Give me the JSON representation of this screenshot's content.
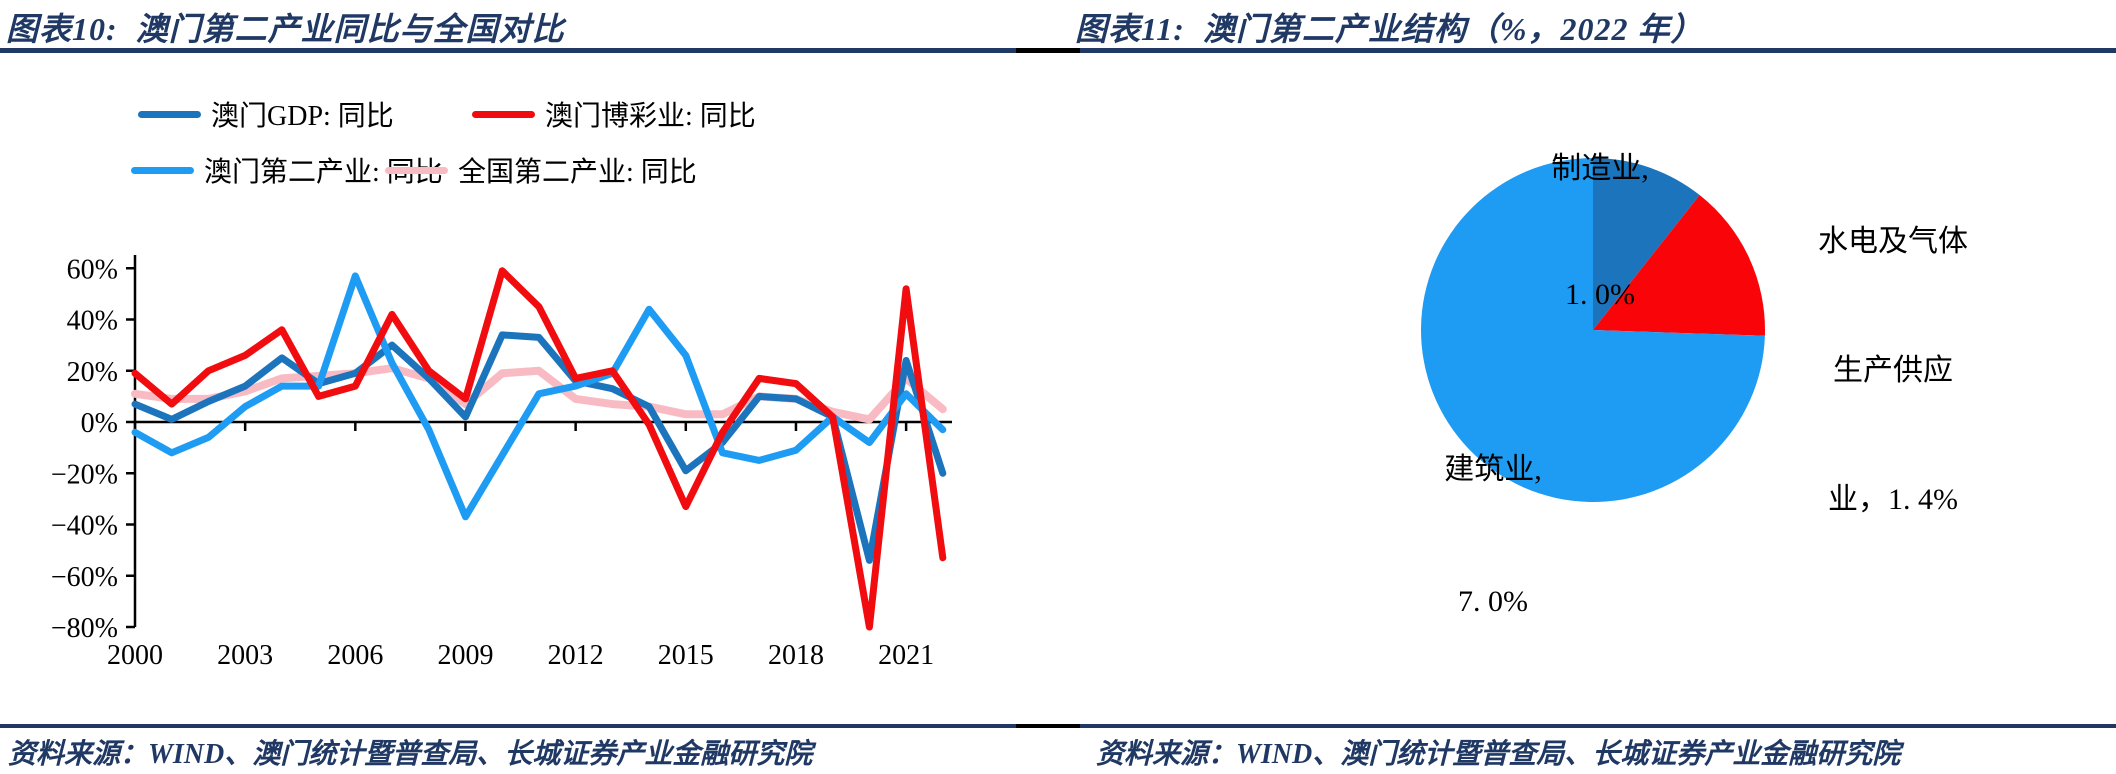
{
  "left_panel": {
    "title": "图表10:  澳门第二产业同比与全国对比",
    "source": "资料来源：WIND、澳门统计暨普查局、长城证券产业金融研究院"
  },
  "right_panel": {
    "title": "图表11:  澳门第二产业结构（%，2022 年）",
    "source": "资料来源：WIND、澳门统计暨普查局、长城证券产业金融研究院",
    "pie_labels": {
      "manufacturing": {
        "line1": "制造业,",
        "line2": "1. 0%"
      },
      "utilities": {
        "line1": "水电及气体",
        "line2": "生产供应",
        "line3": "业，1. 4%"
      },
      "construction": {
        "line1": "建筑业,",
        "line2": "7. 0%"
      }
    }
  },
  "colors": {
    "navy_accent": "#1F3864",
    "macau_gdp_blue": "#1C74BC",
    "gaming_red": "#F10C10",
    "macau_secondary_lightblue": "#1E9BF3",
    "national_secondary_pink": "#F9BBC3",
    "pie_red": "#F90509",
    "axis_black": "#000000"
  },
  "chart_data": [
    {
      "type": "line",
      "title": "澳门第二产业同比与全国对比",
      "x": [
        2000,
        2001,
        2002,
        2003,
        2004,
        2005,
        2006,
        2007,
        2008,
        2009,
        2010,
        2011,
        2012,
        2013,
        2014,
        2015,
        2016,
        2017,
        2018,
        2019,
        2020,
        2021,
        2022
      ],
      "series": [
        {
          "name": "澳门GDP: 同比",
          "color": "#1C74BC",
          "values": [
            7,
            1,
            8,
            14,
            25,
            15,
            19,
            30,
            17,
            2,
            34,
            33,
            16,
            13,
            6,
            -19,
            -8,
            10,
            9,
            2,
            -54,
            24,
            -20
          ]
        },
        {
          "name": "澳门博彩业: 同比",
          "color": "#F10C10",
          "values": [
            19,
            7,
            20,
            26,
            36,
            10,
            14,
            42,
            20,
            9,
            59,
            45,
            17,
            20,
            -1,
            -33,
            -4,
            17,
            15,
            2,
            -80,
            52,
            -53
          ]
        },
        {
          "name": "澳门第二产业: 同比",
          "color": "#1E9BF3",
          "values": [
            -4,
            -12,
            -6,
            6,
            14,
            14,
            57,
            23,
            -3,
            -37,
            -13,
            11,
            14,
            19,
            44,
            26,
            -12,
            -15,
            -11,
            2,
            -8,
            11,
            -3
          ]
        },
        {
          "name": "全国第二产业: 同比",
          "color": "#F9BBC3",
          "values": [
            11,
            9,
            9,
            12,
            17,
            18,
            19,
            21,
            17,
            7,
            19,
            20,
            9,
            7,
            6,
            3,
            3,
            10,
            9,
            4,
            1,
            17,
            5
          ]
        }
      ],
      "ylim": [
        -80,
        65
      ],
      "ytick_values": [
        60,
        40,
        20,
        0,
        -20,
        -40,
        -60,
        -80
      ],
      "ytick_labels": [
        "60%",
        "40%",
        "20%",
        "0%",
        "−20%",
        "−40%",
        "−60%",
        "−80%"
      ],
      "xtick_years": [
        2000,
        2003,
        2006,
        2009,
        2012,
        2015,
        2018,
        2021
      ],
      "xtick_labels": [
        "2000",
        "2003",
        "2006",
        "2009",
        "2012",
        "2015",
        "2018",
        "2021"
      ],
      "grid": false,
      "legend_position": "top"
    },
    {
      "type": "pie",
      "title": "澳门第二产业结构（%，2022年）",
      "slices": [
        {
          "name": "制造业",
          "value": 1.0,
          "color": "#1C74BC"
        },
        {
          "name": "水电及气体生产供应业",
          "value": 1.4,
          "color": "#F90509"
        },
        {
          "name": "建筑业",
          "value": 7.0,
          "color": "#1E9BF3"
        }
      ],
      "start_angle_deg": -90,
      "direction": "clockwise"
    }
  ]
}
